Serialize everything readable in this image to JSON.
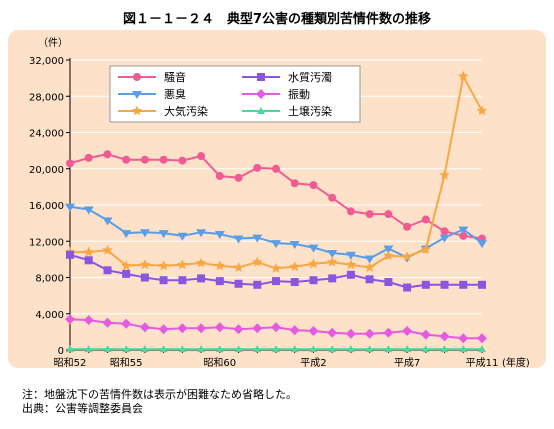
{
  "title": "図１－１－２４　典型7公害の種類別苦情件数の推移",
  "notes": {
    "note": "注：地盤沈下の苦情件数は表示が困難なため省略した。",
    "source": "出典：公害等調整委員会"
  },
  "chart_data": {
    "type": "line",
    "title": "図１－１－２４　典型7公害の種類別苦情件数の推移",
    "ylabel": "（件）",
    "xlabel": "(年度)",
    "ylim": [
      0,
      32000
    ],
    "yticks": [
      0,
      4000,
      8000,
      12000,
      16000,
      20000,
      24000,
      28000,
      32000
    ],
    "ytick_labels": [
      "0",
      "4,000",
      "8,000",
      "12,000",
      "16,000",
      "20,000",
      "24,000",
      "28,000",
      "32,000"
    ],
    "x": [
      1977,
      1978,
      1979,
      1980,
      1981,
      1982,
      1983,
      1984,
      1985,
      1986,
      1987,
      1988,
      1989,
      1990,
      1991,
      1992,
      1993,
      1994,
      1995,
      1996,
      1997,
      1998,
      1999
    ],
    "xticks": [
      {
        "x": 1977,
        "label": "昭和52"
      },
      {
        "x": 1980,
        "label": "昭和55"
      },
      {
        "x": 1985,
        "label": "昭和60"
      },
      {
        "x": 1990,
        "label": "平成2"
      },
      {
        "x": 1995,
        "label": "平成7"
      },
      {
        "x": 1999,
        "label": "平成11"
      }
    ],
    "grid": "horizontal",
    "legend_position": "top-left",
    "series": [
      {
        "name": "騒音",
        "color": "#ee5c93",
        "marker": "circle",
        "values": [
          20600,
          21200,
          21600,
          21000,
          21000,
          21000,
          20900,
          21400,
          19200,
          19000,
          20100,
          20000,
          18400,
          18200,
          16800,
          15300,
          15000,
          15000,
          13600,
          14400,
          13100,
          12600,
          12300
        ]
      },
      {
        "name": "悪臭",
        "color": "#5b9ee6",
        "marker": "triangle-down",
        "values": [
          15800,
          15500,
          14300,
          12900,
          13000,
          12900,
          12600,
          13000,
          12800,
          12300,
          12400,
          11800,
          11700,
          11300,
          10700,
          10500,
          10100,
          11200,
          10200,
          11200,
          12400,
          13300,
          11800
        ]
      },
      {
        "name": "大気汚染",
        "color": "#f7a843",
        "marker": "star",
        "values": [
          10800,
          10800,
          11000,
          9300,
          9400,
          9300,
          9400,
          9600,
          9300,
          9100,
          9700,
          9000,
          9200,
          9500,
          9700,
          9400,
          9100,
          10400,
          10300,
          11100,
          19300,
          30200,
          26400
        ]
      },
      {
        "name": "水質汚濁",
        "color": "#8a56e0",
        "marker": "square",
        "values": [
          10500,
          9900,
          8800,
          8400,
          8000,
          7700,
          7700,
          7900,
          7600,
          7300,
          7200,
          7600,
          7500,
          7700,
          7900,
          8300,
          7800,
          7500,
          6900,
          7200,
          7200,
          7200,
          7200
        ]
      },
      {
        "name": "振動",
        "color": "#e55be0",
        "marker": "diamond",
        "values": [
          3400,
          3300,
          3000,
          2900,
          2500,
          2300,
          2400,
          2400,
          2500,
          2300,
          2400,
          2500,
          2200,
          2100,
          1900,
          1800,
          1800,
          1900,
          2100,
          1700,
          1500,
          1300,
          1300
        ]
      },
      {
        "name": "土壌汚染",
        "color": "#4cd79c",
        "marker": "triangle-up",
        "values": [
          100,
          100,
          100,
          100,
          100,
          100,
          100,
          100,
          100,
          100,
          100,
          100,
          100,
          100,
          100,
          100,
          100,
          100,
          100,
          100,
          100,
          100,
          100
        ]
      }
    ]
  }
}
